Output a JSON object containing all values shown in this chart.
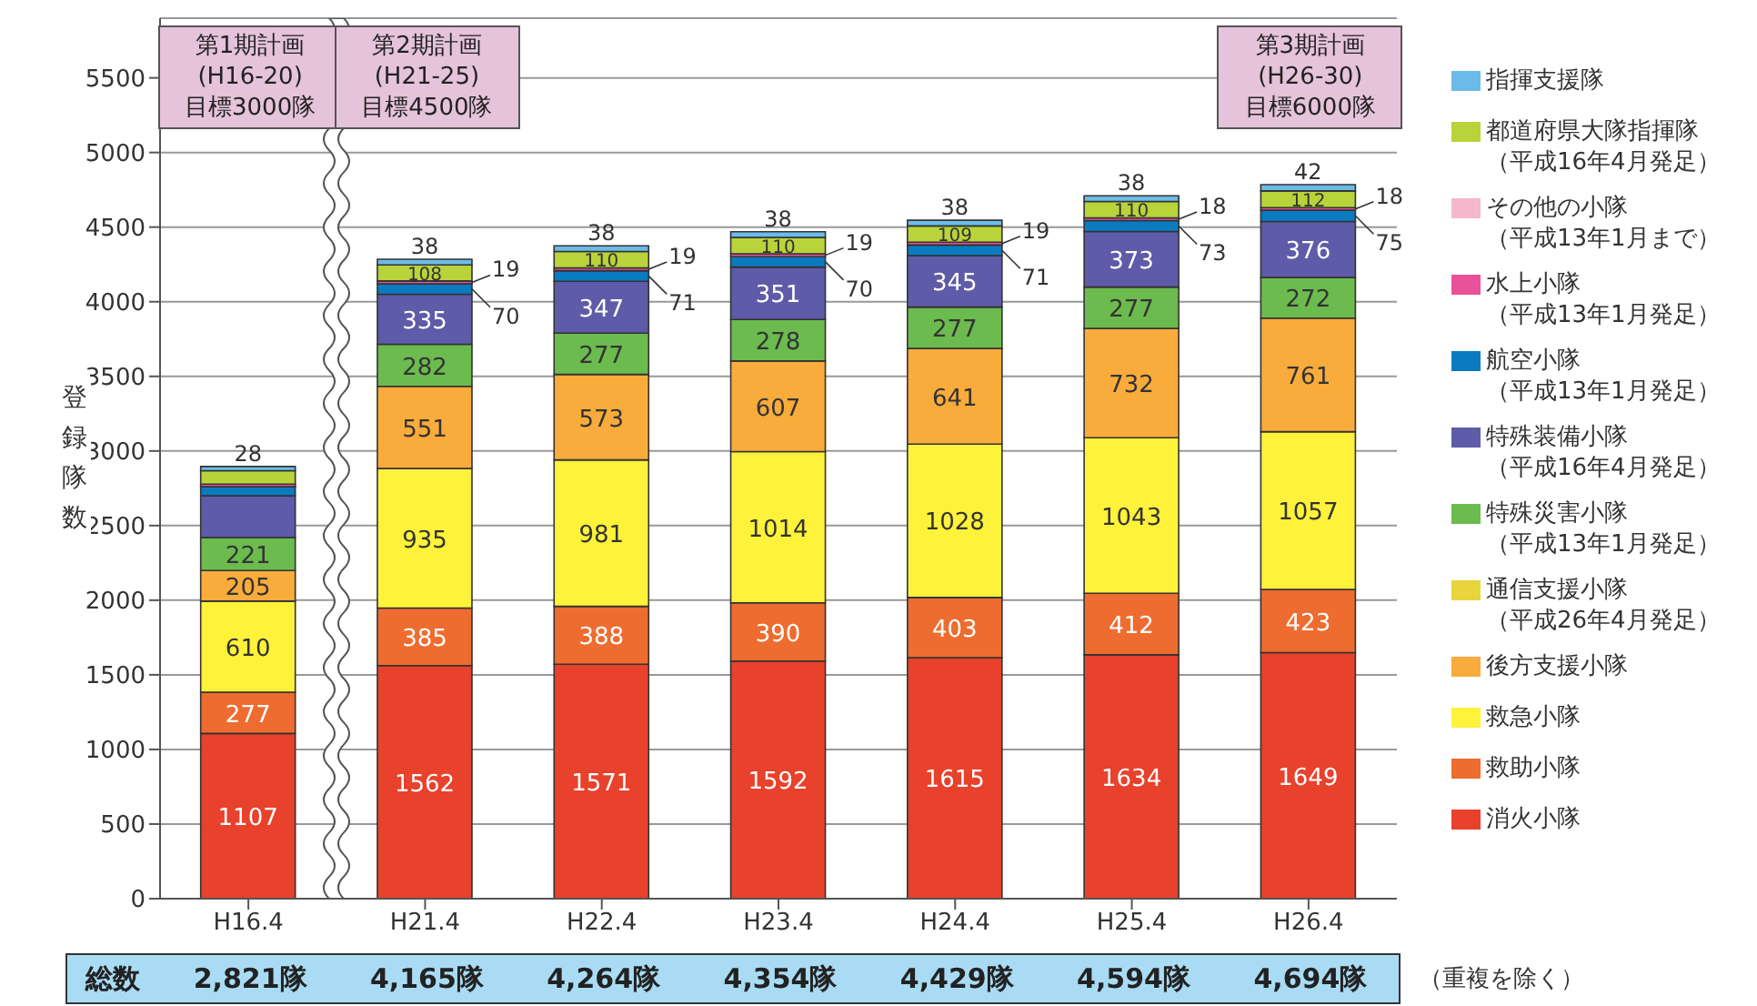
{
  "chart_data": {
    "type": "bar",
    "stacked": true,
    "ylabel": "登録隊数",
    "categories": [
      "H16.4",
      "H21.4",
      "H22.4",
      "H23.4",
      "H24.4",
      "H25.4",
      "H26.4"
    ],
    "ylim": [
      0,
      5900
    ],
    "yticks": [
      0,
      500,
      1000,
      1500,
      2000,
      2500,
      3000,
      3500,
      4000,
      4500,
      5000,
      5500
    ],
    "grid": "y",
    "legend": "right",
    "series": [
      {
        "name": "消火小隊",
        "color": "#e8412c",
        "values": [
          1107,
          1562,
          1571,
          1592,
          1615,
          1634,
          1649
        ],
        "value_labels": [
          "1107",
          "1562",
          "1571",
          "1592",
          "1615",
          "1634",
          "1649"
        ]
      },
      {
        "name": "救助小隊",
        "color": "#ee6c2f",
        "values": [
          277,
          385,
          388,
          390,
          403,
          412,
          423
        ],
        "value_labels": [
          "277",
          "385",
          "388",
          "390",
          "403",
          "412",
          "423"
        ]
      },
      {
        "name": "救急小隊",
        "color": "#fff23a",
        "values": [
          610,
          935,
          981,
          1014,
          1028,
          1043,
          1057
        ],
        "value_labels": [
          "610",
          "935",
          "981",
          "1014",
          "1028",
          "1043",
          "1057"
        ]
      },
      {
        "name": "後方支援小隊",
        "color": "#f9ab3b",
        "values": [
          205,
          551,
          573,
          607,
          641,
          732,
          761
        ],
        "value_labels": [
          "205",
          "551",
          "573",
          "607",
          "641",
          "732",
          "761"
        ]
      },
      {
        "name": "通信支援小隊（平成26年4月発足）",
        "color": "#e8d43c",
        "values": [
          null,
          null,
          null,
          null,
          null,
          null,
          null
        ]
      },
      {
        "name": "特殊災害小隊（平成13年1月発足）",
        "color": "#6cbb4e",
        "values": [
          221,
          282,
          277,
          278,
          277,
          277,
          272
        ],
        "value_labels": [
          "221",
          "282",
          "277",
          "278",
          "277",
          "277",
          "272"
        ]
      },
      {
        "name": "特殊装備小隊（平成16年4月発足）",
        "color": "#5e5ba8",
        "values": [
          280,
          335,
          347,
          351,
          345,
          373,
          376
        ],
        "value_labels": [
          null,
          "335",
          "347",
          "351",
          "345",
          "373",
          "376"
        ]
      },
      {
        "name": "航空小隊（平成13年1月発足）",
        "color": "#0a7bc1",
        "values": [
          60,
          70,
          71,
          70,
          71,
          73,
          75
        ],
        "value_labels": [
          null,
          "70",
          "71",
          "70",
          "71",
          "73",
          "75"
        ]
      },
      {
        "name": "水上小隊（平成13年1月発足）",
        "color": "#e9519a",
        "values": [
          18,
          19,
          19,
          19,
          19,
          18,
          18
        ],
        "value_labels": [
          null,
          "19",
          "19",
          "19",
          "19",
          "18",
          "18"
        ]
      },
      {
        "name": "その他の小隊（平成13年1月まで）",
        "color": "#f5b8cc",
        "values": [
          null,
          null,
          null,
          null,
          null,
          null,
          null
        ]
      },
      {
        "name": "都道府県大隊指揮隊（平成16年4月発足）",
        "color": "#b9d33a",
        "values": [
          90,
          108,
          110,
          110,
          109,
          110,
          112
        ],
        "value_labels": [
          null,
          "108",
          "110",
          "110",
          "109",
          "110",
          "112"
        ]
      },
      {
        "name": "指揮支援隊",
        "color": "#6bbbe8",
        "values": [
          28,
          38,
          38,
          38,
          38,
          38,
          42
        ],
        "value_labels": [
          "28",
          "38",
          "38",
          "38",
          "38",
          "38",
          "42"
        ]
      }
    ],
    "annotations": [
      "第1期計画\n(H16-20)\n目標3000隊",
      "第2期計画\n(H21-25)\n目標4500隊",
      "第3期計画\n(H26-30)\n目標6000隊",
      "総数",
      "2,821隊",
      "4,165隊",
      "4,264隊",
      "4,354隊",
      "4,429隊",
      "4,594隊",
      "4,694隊",
      "（重複を除く）"
    ]
  }
}
